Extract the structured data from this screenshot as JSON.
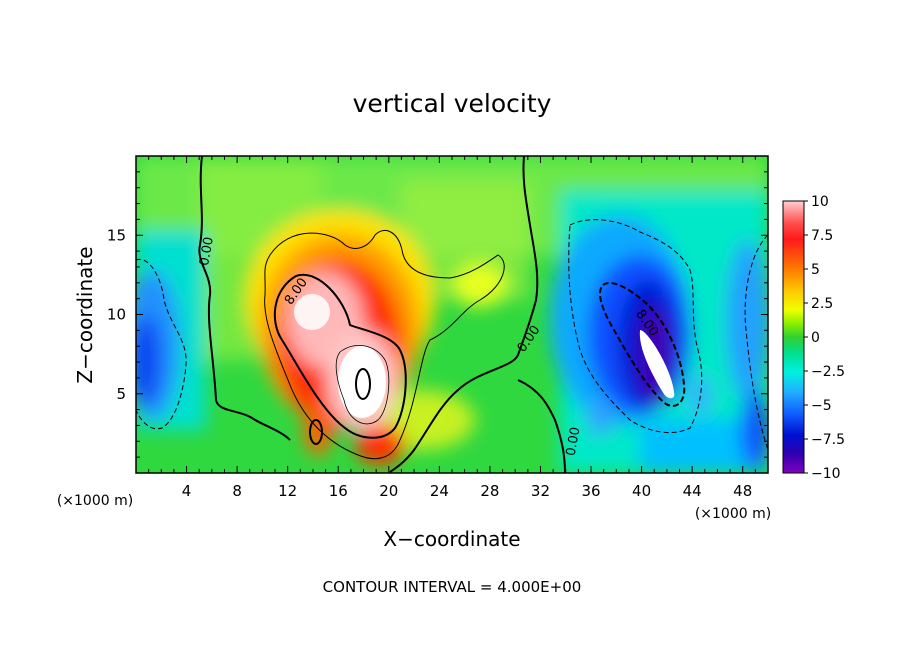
{
  "chart_data": {
    "type": "heatmap",
    "title": "vertical velocity",
    "xlabel": "X−coordinate",
    "ylabel": "Z−coordinate",
    "x_unit_left": "(×1000 m)",
    "x_unit_right": "(×1000 m)",
    "footer": "CONTOUR INTERVAL = 4.000E+00",
    "xlim": [
      0,
      50
    ],
    "ylim": [
      0,
      20
    ],
    "x_ticks": [
      "4",
      "8",
      "12",
      "16",
      "20",
      "24",
      "28",
      "32",
      "36",
      "40",
      "44",
      "48"
    ],
    "y_ticks": [
      "5",
      "10",
      "15"
    ],
    "colorbar": {
      "range": [
        -10,
        10
      ],
      "tick_labels": [
        "10",
        "7.5",
        "5",
        "2.5",
        "0",
        "−2.5",
        "−5",
        "−7.5",
        "−10"
      ],
      "tick_values": [
        10,
        7.5,
        5,
        2.5,
        0,
        -2.5,
        -5,
        -7.5,
        -10
      ]
    },
    "contour_labels": [
      {
        "text": "0.00",
        "x": 5.5,
        "z": 14.0,
        "angle": -80
      },
      {
        "text": "8.00",
        "x": 12.6,
        "z": 11.5,
        "angle": -55
      },
      {
        "text": "0.00",
        "x": 31.0,
        "z": 8.5,
        "angle": -55
      },
      {
        "text": "0.00",
        "x": 34.5,
        "z": 2.0,
        "angle": -80
      },
      {
        "text": "8.00",
        "x": 40.5,
        "z": 9.5,
        "angle": 55
      }
    ],
    "features": [
      {
        "name": "updraft core",
        "x": 18,
        "z": 7,
        "max_w": 10
      },
      {
        "name": "downdraft core",
        "x": 41,
        "z": 7.5,
        "min_w": -10
      },
      {
        "name": "left downdraft",
        "x": 1,
        "z": 8,
        "min_w": -6
      }
    ]
  }
}
